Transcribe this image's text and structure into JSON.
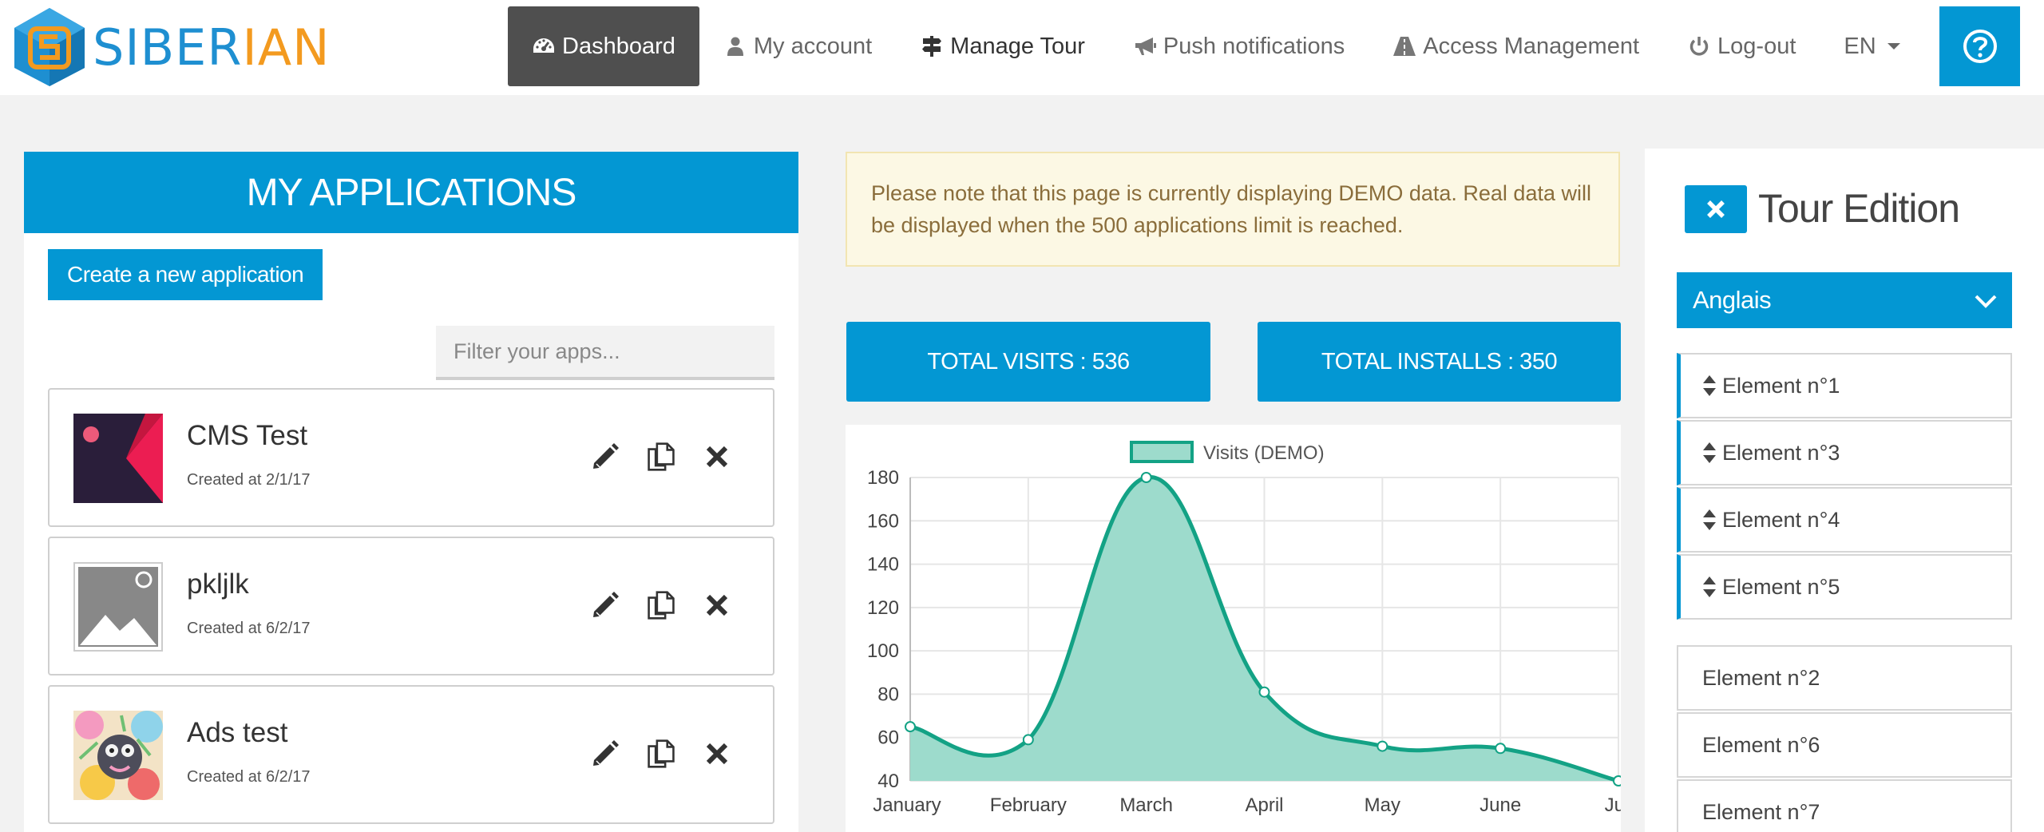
{
  "brand": {
    "part1": "SIBER",
    "part2": "IAN"
  },
  "nav": {
    "dashboard": "Dashboard",
    "my_account": "My account",
    "manage_tour": "Manage Tour",
    "push_notifications": "Push notifications",
    "access_management": "Access Management",
    "logout": "Log-out",
    "language": "EN"
  },
  "apps": {
    "title": "MY APPLICATIONS",
    "create_label": "Create a new application",
    "filter_placeholder": "Filter your apps...",
    "list": [
      {
        "name": "CMS Test",
        "created": "Created at 2/1/17"
      },
      {
        "name": "pkljlk",
        "created": "Created at 6/2/17"
      },
      {
        "name": "Ads test",
        "created": "Created at 6/2/17"
      }
    ]
  },
  "notice": {
    "text": "Please note that this page is currently displaying DEMO data. Real data will be displayed when the 500 applications limit is reached."
  },
  "stats": {
    "visits": "TOTAL VISITS : 536",
    "installs": "TOTAL INSTALLS : 350"
  },
  "chart_data": {
    "type": "area",
    "categories": [
      "January",
      "February",
      "March",
      "April",
      "May",
      "June",
      "July"
    ],
    "series": [
      {
        "name": "Visits (DEMO)",
        "values": [
          65,
          59,
          180,
          81,
          56,
          55,
          40
        ]
      }
    ],
    "ylim": [
      40,
      180
    ],
    "yticks": [
      "180",
      "160",
      "140",
      "120",
      "100",
      "80",
      "60",
      "40"
    ],
    "grid": true,
    "legend": "top-center",
    "colors": {
      "line": "#13a285",
      "fill": "#9ddbcc",
      "grid": "#e6e6e6"
    }
  },
  "tour": {
    "title": "Tour Edition",
    "language": "Anglais",
    "sortable_elements": [
      "Element n°1",
      "Element n°3",
      "Element n°4",
      "Element n°5"
    ],
    "other_elements": [
      "Element n°2",
      "Element n°6",
      "Element n°7"
    ]
  },
  "colors": {
    "accent": "#0397d3",
    "nav_active": "#4f4f4f",
    "notice_bg": "#fcf8e4",
    "notice_text": "#8a6d3b"
  },
  "icons": {
    "dashboard": "tachometer-icon",
    "account": "user-icon",
    "tour": "signpost-icon",
    "push": "bullhorn-icon",
    "access": "road-icon",
    "logout": "power-icon",
    "help": "question-circle-icon"
  }
}
